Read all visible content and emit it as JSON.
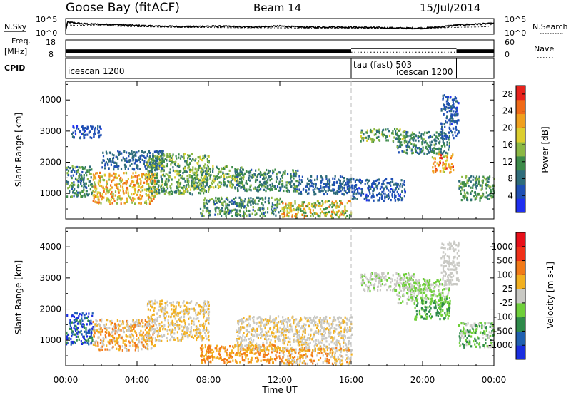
{
  "header": {
    "title": "Goose Bay (fitACF)",
    "beam": "Beam 14",
    "date": "15/Jul/2014"
  },
  "strips": {
    "noise": {
      "left_label": "N.Sky",
      "right_label": "N.Search",
      "tick_top": "10^5",
      "tick_bottom": "10^0",
      "sky_profile": [
        [
          0,
          1.0
        ],
        [
          0.1,
          4.0
        ],
        [
          1,
          3.4
        ],
        [
          2,
          3.2
        ],
        [
          3,
          3.1
        ],
        [
          4,
          2.8
        ],
        [
          5,
          2.6
        ],
        [
          6,
          2.5
        ],
        [
          7,
          2.4
        ],
        [
          8,
          2.6
        ],
        [
          9,
          2.5
        ],
        [
          10,
          2.3
        ],
        [
          11,
          2.4
        ],
        [
          12,
          2.6
        ],
        [
          13,
          2.3
        ],
        [
          14,
          2.2
        ],
        [
          15,
          2.3
        ],
        [
          16,
          2.2
        ],
        [
          17,
          2.1
        ],
        [
          18,
          2.0
        ],
        [
          19,
          1.9
        ],
        [
          20,
          1.9
        ],
        [
          21,
          2.3
        ],
        [
          22,
          3.0
        ],
        [
          23,
          3.3
        ],
        [
          24,
          3.5
        ]
      ],
      "search_profile": [
        [
          0,
          3.0
        ],
        [
          2,
          2.7
        ],
        [
          4,
          2.4
        ],
        [
          6,
          2.2
        ],
        [
          8,
          2.1
        ],
        [
          10,
          2.0
        ],
        [
          12,
          2.0
        ],
        [
          14,
          1.9
        ],
        [
          16,
          1.9
        ],
        [
          18,
          1.8
        ],
        [
          20,
          1.8
        ],
        [
          22,
          2.2
        ],
        [
          24,
          2.4
        ]
      ]
    },
    "freq": {
      "left_label": "Freq.",
      "left_unit": "[MHz]",
      "tick_top": "18",
      "tick_bottom": "8",
      "right_tick_top": "60",
      "right_tick_bottom": "0",
      "right_label": "Nave",
      "band_mhz": [
        10.5,
        12.5
      ],
      "dotted_nave": 17,
      "solid_segments": [
        [
          0,
          16
        ],
        [
          21.9,
          24
        ]
      ],
      "tau_segment": [
        16,
        21.9
      ]
    },
    "cpid": {
      "label": "CPID",
      "segments": [
        {
          "label": "icescan 1200",
          "start": 0,
          "end": 16
        },
        {
          "label": "tau (fast) 503",
          "start": 16,
          "end": 21.9
        },
        {
          "label": "icescan 1200",
          "start": 21.9,
          "end": 24
        }
      ]
    }
  },
  "chart_data": [
    {
      "type": "heatmap",
      "title": "",
      "xlabel": "Time UT",
      "ylabel": "Slant Range [km]",
      "x_range_hours": [
        0,
        24
      ],
      "ylim_km": [
        180,
        4600
      ],
      "x_ticks": [
        "00:00",
        "04:00",
        "08:00",
        "12:00",
        "16:00",
        "20:00",
        "00:00"
      ],
      "x_tick_hours": [
        0,
        4,
        8,
        12,
        16,
        20,
        24
      ],
      "y_ticks": [
        1000,
        2000,
        3000,
        4000
      ],
      "dashed_line_hour": 16,
      "colorbar": {
        "label": "Power [dB]",
        "ticks": [
          4,
          8,
          12,
          16,
          20,
          24,
          28
        ],
        "range": [
          0,
          30
        ],
        "colors": [
          "#1f2ff0",
          "#1f4fb4",
          "#2e6c7a",
          "#3d8b4a",
          "#8cb844",
          "#dcce2f",
          "#f0a01e",
          "#f06a18",
          "#e8221c"
        ]
      },
      "regions": [
        {
          "t": [
            0.0,
            1.5
          ],
          "r": [
            900,
            1900
          ],
          "v": [
            5,
            15
          ]
        },
        {
          "t": [
            0.3,
            2.0
          ],
          "r": [
            2800,
            3200
          ],
          "v": [
            3,
            7
          ]
        },
        {
          "t": [
            1.5,
            5.0
          ],
          "r": [
            700,
            1700
          ],
          "v": [
            14,
            26
          ]
        },
        {
          "t": [
            2.0,
            5.5
          ],
          "r": [
            1800,
            2400
          ],
          "v": [
            4,
            10
          ]
        },
        {
          "t": [
            4.5,
            8.0
          ],
          "r": [
            1000,
            2300
          ],
          "v": [
            8,
            18
          ]
        },
        {
          "t": [
            7.0,
            10.0
          ],
          "r": [
            1200,
            1900
          ],
          "v": [
            8,
            18
          ]
        },
        {
          "t": [
            7.5,
            12.0
          ],
          "r": [
            300,
            900
          ],
          "v": [
            6,
            16
          ]
        },
        {
          "t": [
            9.5,
            13.0
          ],
          "r": [
            1100,
            1800
          ],
          "v": [
            6,
            14
          ]
        },
        {
          "t": [
            12.0,
            16.0
          ],
          "r": [
            250,
            800
          ],
          "v": [
            10,
            26
          ]
        },
        {
          "t": [
            13.0,
            16.0
          ],
          "r": [
            1000,
            1600
          ],
          "v": [
            4,
            10
          ]
        },
        {
          "t": [
            16.0,
            19.0
          ],
          "r": [
            800,
            1500
          ],
          "v": [
            3,
            8
          ]
        },
        {
          "t": [
            16.5,
            19.0
          ],
          "r": [
            2700,
            3100
          ],
          "v": [
            8,
            18
          ]
        },
        {
          "t": [
            18.5,
            21.5
          ],
          "r": [
            2300,
            3000
          ],
          "v": [
            6,
            14
          ]
        },
        {
          "t": [
            20.5,
            21.7
          ],
          "r": [
            1700,
            2300
          ],
          "v": [
            16,
            28
          ]
        },
        {
          "t": [
            21.0,
            22.0
          ],
          "r": [
            2800,
            4200
          ],
          "v": [
            3,
            8
          ]
        },
        {
          "t": [
            22.0,
            24.0
          ],
          "r": [
            800,
            1600
          ],
          "v": [
            8,
            16
          ]
        }
      ]
    },
    {
      "type": "heatmap",
      "title": "",
      "xlabel": "Time UT",
      "ylabel": "Slant Range [km]",
      "x_range_hours": [
        0,
        24
      ],
      "ylim_km": [
        180,
        4600
      ],
      "x_ticks": [
        "00:00",
        "04:00",
        "08:00",
        "12:00",
        "16:00",
        "20:00",
        "00:00"
      ],
      "x_tick_hours": [
        0,
        4,
        8,
        12,
        16,
        20,
        24
      ],
      "y_ticks": [
        1000,
        2000,
        3000,
        4000
      ],
      "dashed_line_hour": 16,
      "colorbar": {
        "label": "Velocity [m s-1]",
        "ticks": [
          "1000",
          "500",
          "100",
          "25",
          "-25",
          "-100",
          "-500",
          "-1000"
        ],
        "colors": [
          "#1a2ee0",
          "#2060b0",
          "#2e8a4a",
          "#6fcf3a",
          "#c9c9c4",
          "#f2b020",
          "#f27a18",
          "#f03018",
          "#e8101a"
        ]
      },
      "regions": [
        {
          "t": [
            0.0,
            1.5
          ],
          "r": [
            900,
            1900
          ],
          "c": [
            0,
            1,
            2
          ]
        },
        {
          "t": [
            1.5,
            5.0
          ],
          "r": [
            700,
            1700
          ],
          "c": [
            5,
            6,
            4
          ]
        },
        {
          "t": [
            4.5,
            8.0
          ],
          "r": [
            1000,
            2300
          ],
          "c": [
            4,
            5
          ]
        },
        {
          "t": [
            7.5,
            12.0
          ],
          "r": [
            300,
            900
          ],
          "c": [
            5,
            6
          ]
        },
        {
          "t": [
            9.5,
            16.0
          ],
          "r": [
            700,
            1800
          ],
          "c": [
            4,
            4,
            5
          ]
        },
        {
          "t": [
            12.0,
            16.0
          ],
          "r": [
            250,
            800
          ],
          "c": [
            4,
            5,
            6
          ]
        },
        {
          "t": [
            16.5,
            19.5
          ],
          "r": [
            2600,
            3200
          ],
          "c": [
            4,
            4,
            3
          ]
        },
        {
          "t": [
            18.5,
            21.5
          ],
          "r": [
            2200,
            3000
          ],
          "c": [
            4,
            3
          ]
        },
        {
          "t": [
            19.5,
            21.5
          ],
          "r": [
            1700,
            2400
          ],
          "c": [
            2,
            3
          ]
        },
        {
          "t": [
            21.0,
            22.0
          ],
          "r": [
            2800,
            4200
          ],
          "c": [
            4
          ]
        },
        {
          "t": [
            22.0,
            24.0
          ],
          "r": [
            800,
            1600
          ],
          "c": [
            4,
            3,
            2
          ]
        }
      ]
    }
  ]
}
